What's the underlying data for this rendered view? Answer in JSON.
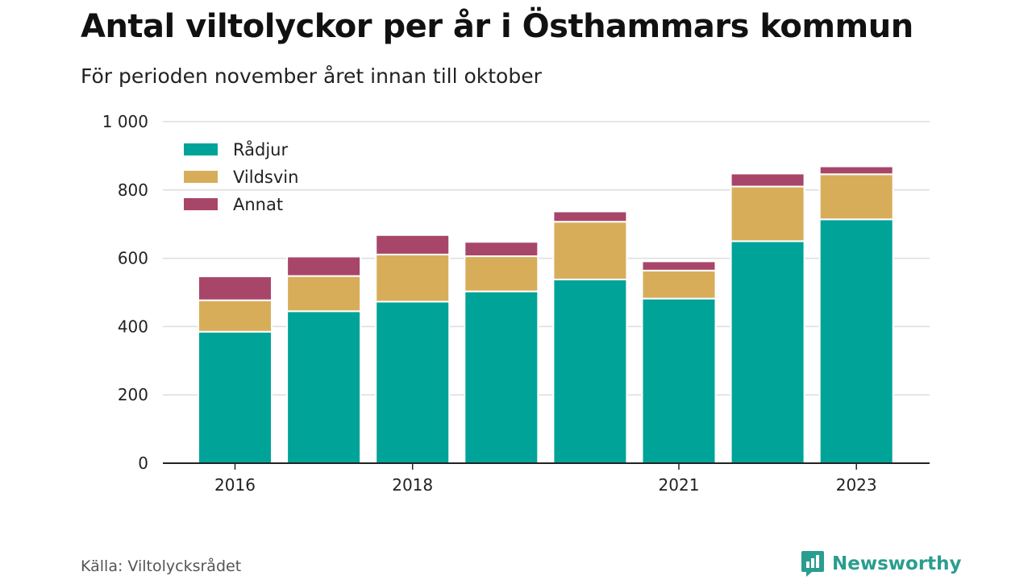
{
  "header": {
    "title": "Antal viltolyckor per år i Östhammars kommun",
    "subtitle": "För perioden november året innan till oktober"
  },
  "footer": {
    "source": "Källa: Viltolycksrådet",
    "brand": "Newsworthy"
  },
  "colors": {
    "radjur": "#00a398",
    "vildsvin": "#d8ad5a",
    "annat": "#a8466a",
    "grid": "#dddddd",
    "axis": "#222222",
    "brand": "#2a9d8f"
  },
  "chart_data": {
    "type": "bar",
    "stacked": true,
    "categories": [
      "2016",
      "2017",
      "2018",
      "2019",
      "2020",
      "2021",
      "2022",
      "2023"
    ],
    "x_tick_labels": [
      "2016",
      "",
      "2018",
      "",
      "",
      "2021",
      "",
      "2023"
    ],
    "series": [
      {
        "name": "Rådjur",
        "color": "#00a398",
        "values": [
          385,
          445,
          473,
          503,
          538,
          482,
          650,
          714
        ]
      },
      {
        "name": "Vildsvin",
        "color": "#d8ad5a",
        "values": [
          92,
          103,
          138,
          103,
          169,
          82,
          160,
          132
        ]
      },
      {
        "name": "Annat",
        "color": "#a8466a",
        "values": [
          70,
          57,
          57,
          42,
          30,
          27,
          38,
          23
        ]
      }
    ],
    "y_ticks": [
      0,
      200,
      400,
      600,
      800,
      1000
    ],
    "y_tick_labels": [
      "0",
      "200",
      "400",
      "600",
      "800",
      "1 000"
    ],
    "ylim": [
      0,
      1000
    ],
    "grid": true,
    "legend_position": "top-left",
    "xlabel": "",
    "ylabel": ""
  }
}
